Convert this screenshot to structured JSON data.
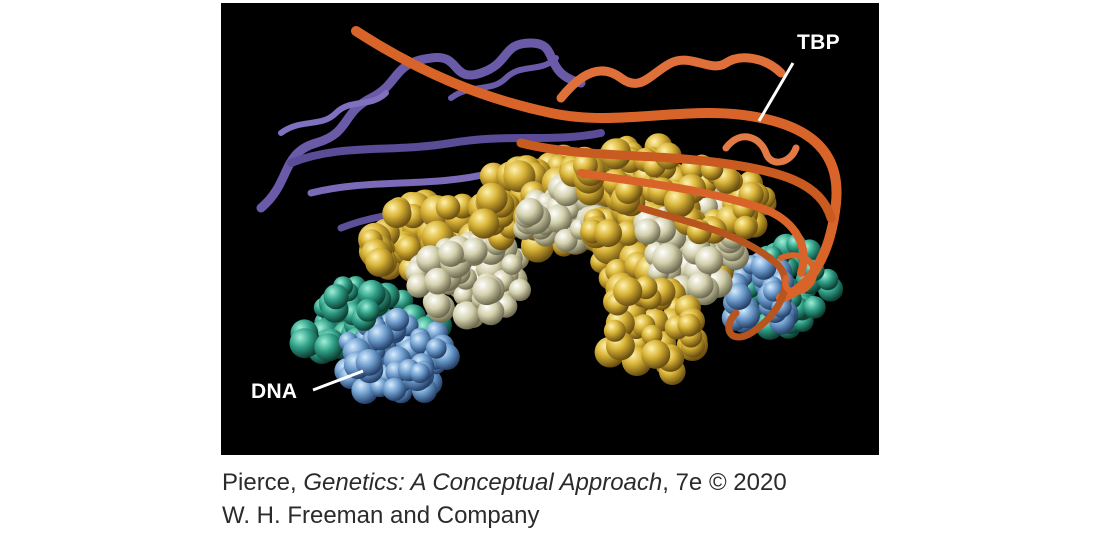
{
  "figure": {
    "labels": {
      "tbp": "TBP",
      "dna": "DNA"
    },
    "colors": {
      "background": "#000000",
      "tbp_ribbon": "#d9642a",
      "second_protein_ribbon": "#6a5aa8",
      "dna_backbone": "#d8b43a",
      "dna_bases_light": "#dcd9b8",
      "dna_teal": "#2f9e86",
      "dna_blue": "#6d9ccc"
    }
  },
  "caption": {
    "line1_author": "Pierce, ",
    "line1_title": "Genetics: A Conceptual Approach",
    "line1_edition": ", 7e © 2020",
    "line2": "W. H. Freeman and Company"
  }
}
